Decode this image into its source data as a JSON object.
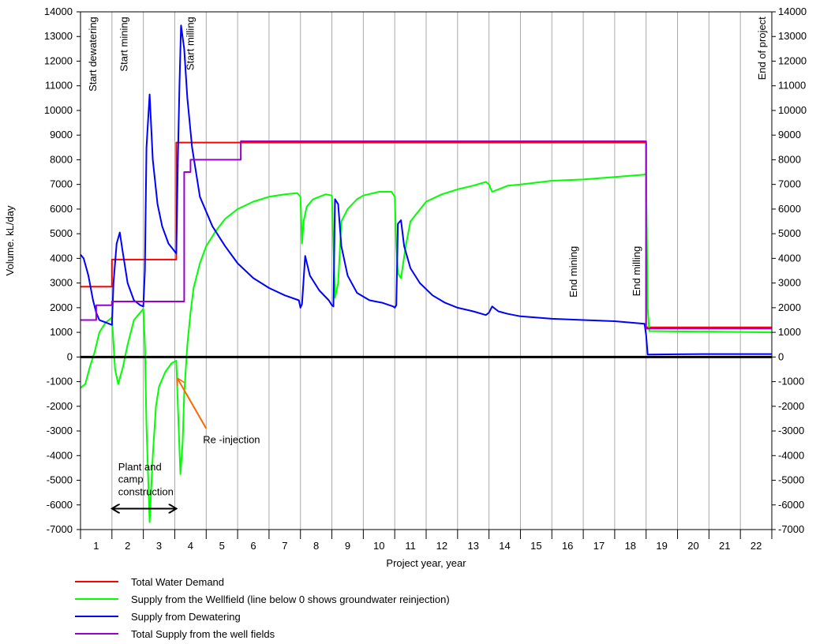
{
  "chart_data": {
    "type": "line",
    "xlabel": "Project year, year",
    "ylabel": "Volume. kL/day",
    "xlim": [
      0,
      22
    ],
    "ylim": [
      -7000,
      14000
    ],
    "ytick_step": 1000,
    "grid_x": true,
    "grid_y": false,
    "right_axis": true,
    "x_tick_labels": [
      "1",
      "2",
      "3",
      "4",
      "5",
      "6",
      "7",
      "8",
      "9",
      "10",
      "11",
      "12",
      "13",
      "14",
      "15",
      "16",
      "17",
      "18",
      "19",
      "20",
      "21",
      "22"
    ],
    "annotations": [
      {
        "text": "Start dewatering",
        "x": 0.5,
        "y": 13800,
        "rotated": true
      },
      {
        "text": "Start mining",
        "x": 1.5,
        "y": 13800,
        "rotated": true
      },
      {
        "text": "Start milling",
        "x": 3.6,
        "y": 13800,
        "rotated": true
      },
      {
        "text": "End of project",
        "x": 21.8,
        "y": 13800,
        "rotated": true
      },
      {
        "text": "End mining",
        "x": 15.8,
        "y": 4500,
        "rotated": true
      },
      {
        "text": "End milling",
        "x": 17.8,
        "y": 4500,
        "rotated": true
      },
      {
        "text": "Re -injection",
        "x": 3.9,
        "y": -3500,
        "rotated": false
      },
      {
        "text": "Plant and",
        "x": 1.2,
        "y": -4600,
        "rotated": false
      },
      {
        "text": "camp",
        "x": 1.2,
        "y": -5100,
        "rotated": false
      },
      {
        "text": "construction",
        "x": 1.2,
        "y": -5600,
        "rotated": false
      }
    ],
    "arrows": [
      {
        "kind": "reinjection",
        "from": [
          4.0,
          -2900
        ],
        "to": [
          3.1,
          -900
        ]
      },
      {
        "kind": "construction",
        "from": [
          1.0,
          -6150
        ],
        "to": [
          3.05,
          -6150
        ]
      }
    ],
    "series": [
      {
        "name": "Total Water Demand",
        "color": "#ff0000",
        "x": [
          0,
          1.0,
          1.0,
          3.05,
          3.05,
          18.0,
          18.0,
          22
        ],
        "y": [
          2850,
          2850,
          3950,
          3950,
          8700,
          8700,
          1200,
          1200
        ]
      },
      {
        "name": "Supply from the Wellfield (line below 0 shows groundwater reinjection)",
        "color": "#00ff00",
        "x": [
          0,
          0.15,
          0.3,
          0.45,
          0.6,
          0.8,
          1.0,
          1.1,
          1.2,
          1.35,
          1.5,
          1.7,
          2.0,
          2.05,
          2.1,
          2.2,
          2.3,
          2.4,
          2.5,
          2.7,
          2.9,
          3.05,
          3.1,
          3.18,
          3.25,
          3.3,
          3.4,
          3.5,
          3.6,
          3.8,
          4.0,
          4.3,
          4.6,
          5.0,
          5.5,
          6.0,
          6.5,
          6.9,
          7.0,
          7.05,
          7.1,
          7.2,
          7.4,
          7.8,
          8.0,
          8.05,
          8.1,
          8.2,
          8.3,
          8.5,
          8.8,
          9.0,
          9.5,
          9.9,
          10.0,
          10.05,
          10.1,
          10.2,
          10.35,
          10.5,
          11.0,
          11.5,
          12.0,
          12.5,
          12.9,
          13.0,
          13.1,
          13.3,
          13.6,
          14.0,
          15.0,
          16.0,
          17.0,
          17.95,
          18.0,
          18.05,
          18.1,
          22
        ],
        "y": [
          -1250,
          -1100,
          -400,
          200,
          1000,
          1400,
          1600,
          -500,
          -1100,
          -400,
          500,
          1500,
          1950,
          500,
          -2800,
          -6700,
          -4000,
          -2000,
          -1200,
          -600,
          -250,
          -150,
          -2000,
          -4750,
          -3500,
          -1500,
          500,
          1800,
          2800,
          3800,
          4500,
          5100,
          5600,
          6000,
          6300,
          6500,
          6600,
          6650,
          6500,
          4600,
          5500,
          6100,
          6400,
          6600,
          6550,
          4500,
          2400,
          3000,
          5500,
          6000,
          6400,
          6550,
          6700,
          6700,
          6500,
          4500,
          3400,
          3200,
          4500,
          5500,
          6300,
          6600,
          6800,
          6950,
          7100,
          7000,
          6700,
          6800,
          6950,
          7000,
          7150,
          7200,
          7300,
          7400,
          7450,
          2000,
          1050,
          1000
        ]
      },
      {
        "name": "Supply from Dewatering",
        "color": "#0000ff",
        "x": [
          0,
          0.1,
          0.25,
          0.4,
          0.5,
          0.6,
          0.8,
          1.0,
          1.05,
          1.15,
          1.25,
          1.35,
          1.5,
          1.7,
          1.9,
          2.0,
          2.05,
          2.1,
          2.2,
          2.3,
          2.45,
          2.6,
          2.8,
          3.05,
          3.1,
          3.15,
          3.2,
          3.3,
          3.4,
          3.55,
          3.8,
          4.2,
          4.6,
          5.0,
          5.5,
          6.0,
          6.5,
          6.95,
          7.0,
          7.05,
          7.15,
          7.3,
          7.6,
          7.9,
          8.0,
          8.05,
          8.1,
          8.2,
          8.3,
          8.5,
          8.8,
          9.2,
          9.6,
          9.95,
          10.0,
          10.05,
          10.1,
          10.2,
          10.3,
          10.5,
          10.8,
          11.2,
          11.6,
          12.0,
          12.5,
          12.9,
          13.0,
          13.1,
          13.3,
          13.6,
          14.0,
          15.0,
          16.0,
          17.0,
          17.95,
          18.0,
          18.05,
          19,
          20,
          21,
          22
        ],
        "y": [
          4150,
          4000,
          3300,
          2300,
          1800,
          1500,
          1400,
          1300,
          3000,
          4600,
          5050,
          4200,
          3000,
          2300,
          2100,
          2050,
          3500,
          8500,
          10650,
          8000,
          6200,
          5300,
          4600,
          4200,
          8000,
          11000,
          13450,
          12500,
          10500,
          8500,
          6500,
          5300,
          4500,
          3800,
          3200,
          2800,
          2500,
          2300,
          2000,
          2150,
          4100,
          3300,
          2700,
          2300,
          2100,
          2050,
          6400,
          6200,
          4500,
          3300,
          2600,
          2300,
          2200,
          2050,
          2000,
          2100,
          5400,
          5550,
          4500,
          3600,
          3000,
          2500,
          2200,
          2000,
          1850,
          1700,
          1800,
          2050,
          1850,
          1750,
          1650,
          1550,
          1500,
          1450,
          1350,
          900,
          100,
          110,
          120,
          120,
          120
        ]
      },
      {
        "name": "Total Supply from the well fields",
        "color": "#9900cc",
        "x": [
          0,
          0.5,
          0.5,
          1.0,
          1.0,
          3.3,
          3.3,
          3.5,
          3.5,
          5.1,
          5.1,
          18.0,
          18.0,
          22
        ],
        "y": [
          1500,
          1500,
          2100,
          2100,
          2250,
          2250,
          7500,
          7500,
          8000,
          8000,
          8750,
          8750,
          1150,
          1150
        ]
      }
    ]
  }
}
